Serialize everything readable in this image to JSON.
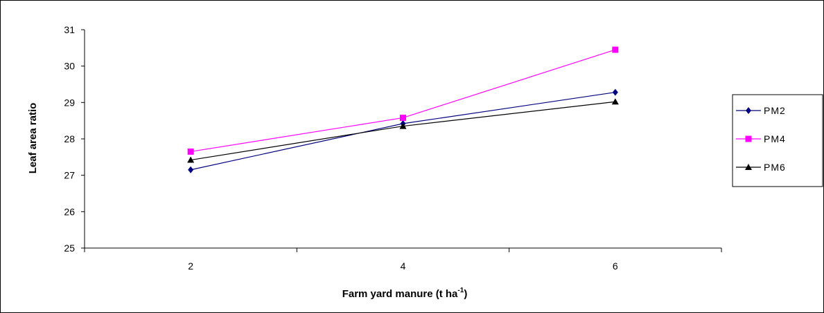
{
  "chart_data": {
    "type": "line",
    "x": [
      2,
      4,
      6
    ],
    "xlabel": "Farm yard manure (t ha",
    "xlabel_sup": "-1",
    "xlabel_tail": ")",
    "ylabel": "Leaf area ratio",
    "ylim": [
      25,
      31
    ],
    "xlim": [
      1,
      7
    ],
    "yticks": [
      25,
      26,
      27,
      28,
      29,
      30,
      31
    ],
    "xticks": [
      2,
      4,
      6
    ],
    "grid": false,
    "legend_position": "right",
    "series": [
      {
        "name": "PM2",
        "values": [
          27.15,
          28.42,
          29.28
        ],
        "color": "#000080",
        "marker": "diamond"
      },
      {
        "name": "PM4",
        "values": [
          27.65,
          28.58,
          30.45
        ],
        "color": "#ff00ff",
        "marker": "square"
      },
      {
        "name": "PM6",
        "values": [
          27.42,
          28.35,
          29.02
        ],
        "color": "#000000",
        "marker": "triangle"
      }
    ]
  }
}
